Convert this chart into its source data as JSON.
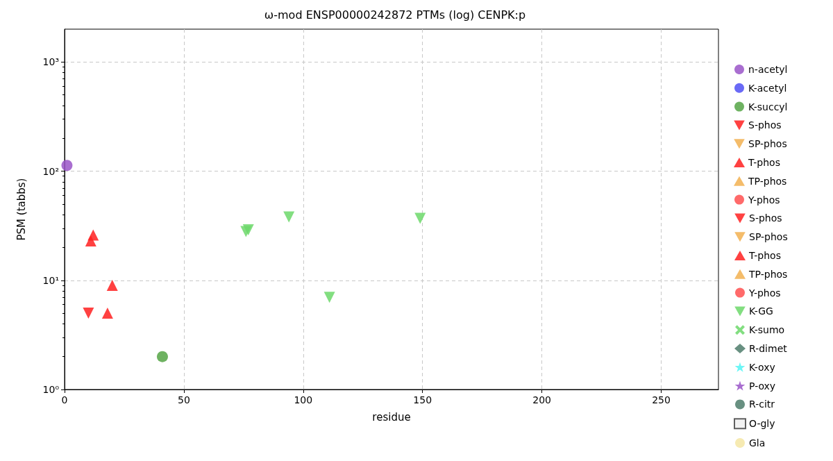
{
  "chart_data": {
    "type": "scatter",
    "title": "ω-mod ENSP00000242872 PTMs (log) CENPK:p",
    "xlabel": "residue",
    "ylabel": "PSM (tabbs)",
    "xlim": [
      0,
      274
    ],
    "xticks": [
      0,
      50,
      100,
      150,
      200,
      250
    ],
    "ylim": [
      1,
      2000
    ],
    "yticks": [
      {
        "value": 1,
        "label": "10⁰"
      },
      {
        "value": 10,
        "label": "10¹"
      },
      {
        "value": 100,
        "label": "10²"
      },
      {
        "value": 1000,
        "label": "10³"
      }
    ],
    "log": "y",
    "grid": true,
    "legend": "right",
    "series": [
      {
        "name": "n-acetyl",
        "color": "#9a55c8",
        "marker": "circle",
        "x": [
          1
        ],
        "values": [
          113
        ]
      },
      {
        "name": "K-acetyl",
        "color": "#5050f5",
        "marker": "circle"
      },
      {
        "name": "K-succyl",
        "color": "#55a545",
        "marker": "circle",
        "x": [
          41
        ],
        "values": [
          2
        ]
      },
      {
        "name": "S-phos",
        "color": "#ff2020",
        "marker": "triangle-down",
        "x": [
          10
        ],
        "values": [
          5
        ]
      },
      {
        "name": "SP-phos",
        "color": "#f2b050",
        "marker": "triangle-down"
      },
      {
        "name": "T-phos",
        "color": "#ff2020",
        "marker": "triangle",
        "x": [
          11,
          12,
          20,
          18
        ],
        "values": [
          23,
          26,
          9,
          5
        ]
      },
      {
        "name": "TP-phos",
        "color": "#f2b050",
        "marker": "triangle"
      },
      {
        "name": "Y-phos",
        "color": "#ff5050",
        "marker": "circle"
      },
      {
        "name": "S-phos",
        "color": "#ff5050",
        "marker": "triangle-down"
      },
      {
        "name": "SP-phos",
        "color": "#f2b050",
        "marker": "triangle-down"
      },
      {
        "name": "T-phos",
        "color": "#ff5050",
        "marker": "triangle"
      },
      {
        "name": "TP-phos",
        "color": "#f2b050",
        "marker": "triangle"
      },
      {
        "name": "Y-phos",
        "color": "#ff5050",
        "marker": "circle"
      },
      {
        "name": "K-GG",
        "color": "#6cd86a",
        "marker": "triangle-down",
        "x": [
          76,
          77,
          94,
          111,
          149
        ],
        "values": [
          28,
          29,
          38,
          7,
          37
        ]
      },
      {
        "name": "K-sumo",
        "color": "#6cd86a",
        "marker": "cross"
      },
      {
        "name": "R-dimet",
        "color": "#4e7c6b",
        "marker": "diamond"
      },
      {
        "name": "K-oxy",
        "color": "#55f5f5",
        "marker": "star"
      },
      {
        "name": "P-oxy",
        "color": "#9a55c8",
        "marker": "star"
      },
      {
        "name": "R-citr",
        "color": "#4e7c6b",
        "marker": "circle"
      },
      {
        "name": "O-gly",
        "color": "#f0f0f0",
        "marker": "square"
      },
      {
        "name": "Gla",
        "color": "#f5e6a5",
        "marker": "circle"
      }
    ]
  }
}
